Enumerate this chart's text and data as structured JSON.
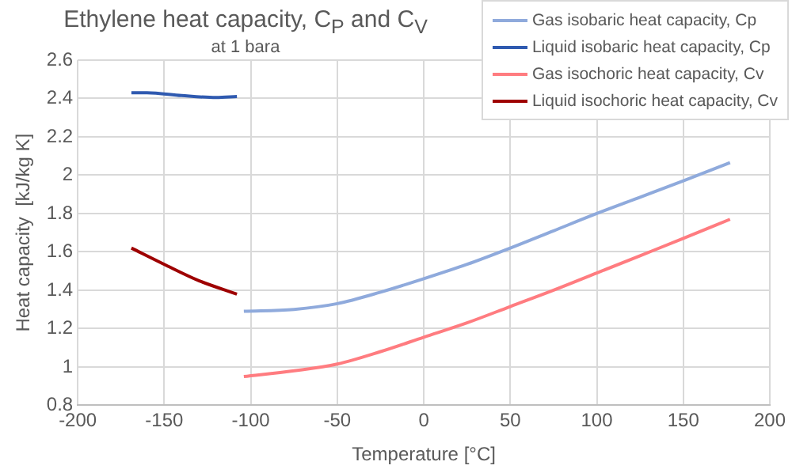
{
  "chart_data": {
    "type": "line",
    "title": "Ethylene heat capacity, C$_{P}$ and C$_{V}$",
    "subtitle": "at 1 bara",
    "xlabel": "Temperature [°C]",
    "ylabel": "Heat capacity  [kJ/kg K]",
    "xlim": [
      -200,
      200
    ],
    "xticks": [
      -200,
      -150,
      -100,
      -50,
      0,
      50,
      100,
      150,
      200
    ],
    "ylim": [
      0.8,
      2.6
    ],
    "yticks": [
      0.8,
      1,
      1.2,
      1.4,
      1.6,
      1.8,
      2,
      2.2,
      2.4,
      2.6
    ],
    "grid": true,
    "legend": "top right",
    "marker": "none",
    "line_style": "solid",
    "series": [
      {
        "name": "Gas isobaric heat capacity, Cp",
        "color": "#8faadc",
        "x": [
          -104,
          -75,
          -50,
          -25,
          0,
          25,
          50,
          75,
          100,
          125,
          150,
          177
        ],
        "values": [
          1.29,
          1.3,
          1.33,
          1.39,
          1.46,
          1.535,
          1.62,
          1.71,
          1.8,
          1.885,
          1.97,
          2.065
        ]
      },
      {
        "name": "Liquid isobaric heat capacity, Cp",
        "color": "#2f5ab0",
        "x": [
          -169,
          -160,
          -140,
          -120,
          -108
        ],
        "values": [
          2.43,
          2.43,
          2.415,
          2.405,
          2.41
        ]
      },
      {
        "name": "Gas isochoric heat capacity, Cv",
        "color": "#ff7c80",
        "x": [
          -104,
          -75,
          -50,
          -25,
          0,
          25,
          50,
          75,
          100,
          125,
          150,
          177
        ],
        "values": [
          0.95,
          0.98,
          1.015,
          1.08,
          1.155,
          1.23,
          1.315,
          1.4,
          1.49,
          1.58,
          1.67,
          1.77
        ]
      },
      {
        "name": "Liquid isochoric heat capacity, Cv",
        "color": "#9e0000",
        "x": [
          -169,
          -150,
          -130,
          -108
        ],
        "values": [
          1.62,
          1.535,
          1.45,
          1.38
        ]
      }
    ]
  }
}
